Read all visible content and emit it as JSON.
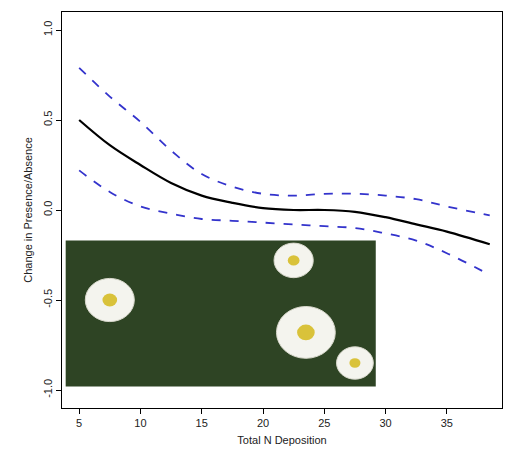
{
  "chart_data": {
    "type": "line",
    "x_label": "Total N Deposition",
    "y_label": "Change in Presence/Absence",
    "x": [
      5,
      7.5,
      10,
      12.5,
      15,
      17.5,
      20,
      22.5,
      25,
      27.5,
      30,
      32.5,
      35,
      38.5
    ],
    "series": [
      {
        "color": "#000000",
        "line_style": "solid",
        "values": [
          0.5,
          0.36,
          0.25,
          0.15,
          0.08,
          0.04,
          0.01,
          0.0,
          0.0,
          -0.01,
          -0.04,
          -0.08,
          -0.12,
          -0.19
        ]
      },
      {
        "color": "#3333cc",
        "line_style": "dashed",
        "values": [
          0.79,
          0.63,
          0.49,
          0.33,
          0.2,
          0.13,
          0.09,
          0.08,
          0.09,
          0.09,
          0.08,
          0.06,
          0.02,
          -0.03
        ]
      },
      {
        "color": "#3333cc",
        "line_style": "dashed",
        "values": [
          0.22,
          0.1,
          0.02,
          -0.02,
          -0.05,
          -0.06,
          -0.07,
          -0.08,
          -0.09,
          -0.1,
          -0.13,
          -0.17,
          -0.24,
          -0.36
        ]
      }
    ],
    "xlim": [
      3.6,
      39.5
    ],
    "ylim": [
      -1.1,
      1.1
    ],
    "xticks": [
      5,
      10,
      15,
      20,
      25,
      30,
      35
    ],
    "yticks": [
      {
        "value": -1,
        "label": "-1.0"
      },
      -0.5,
      {
        "value": 0,
        "label": "0.0"
      },
      0.5,
      {
        "value": 1,
        "label": "1.0"
      }
    ],
    "grid": false
  }
}
